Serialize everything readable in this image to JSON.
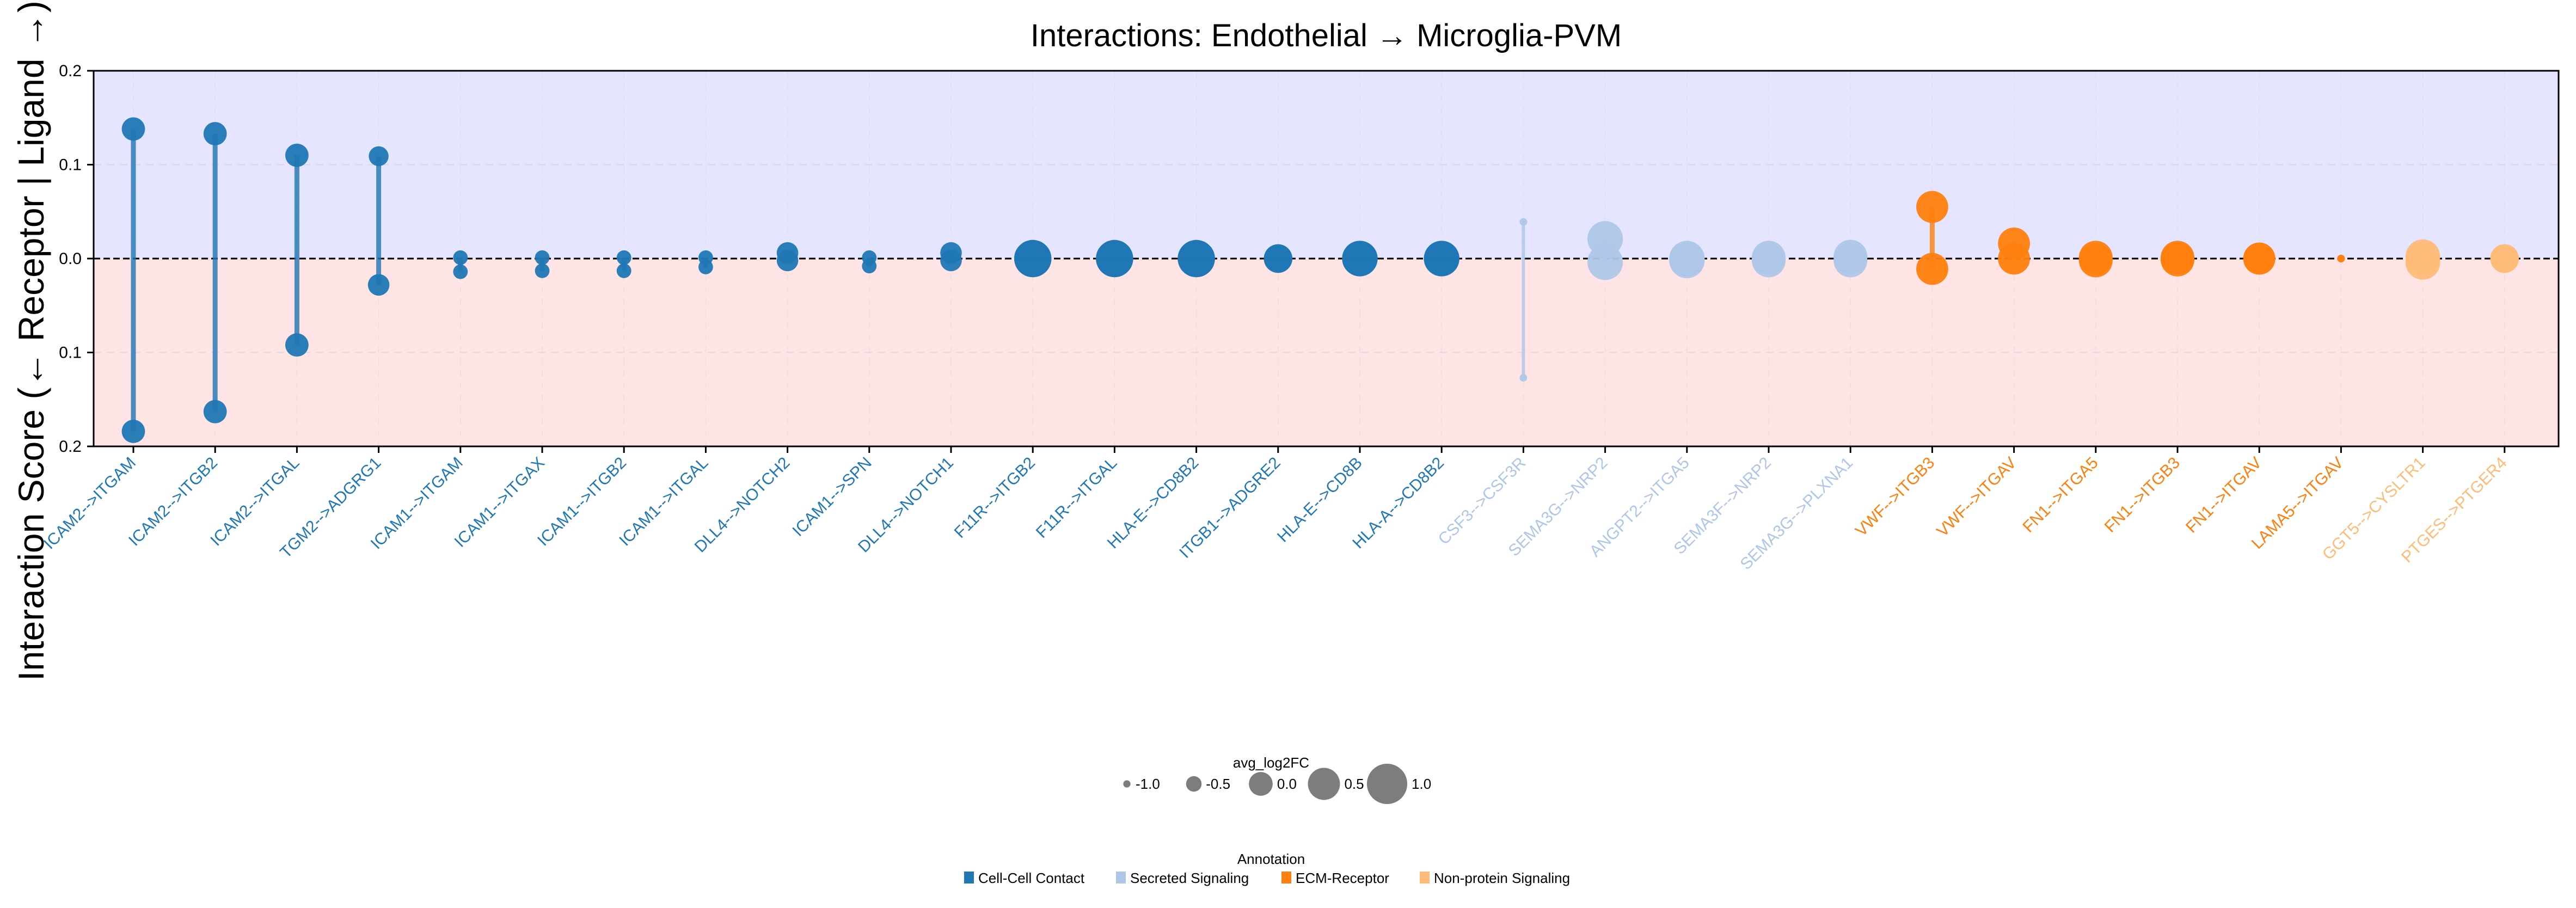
{
  "chart_data": {
    "type": "lollipop",
    "title": "Interactions: Endothelial → Microglia-PVM",
    "ylabel": "Interaction Score (← Receptor | Ligand →)",
    "xlabel": "",
    "ylim": [
      -0.2,
      0.2
    ],
    "yticks": [
      -0.2,
      -0.1,
      0.0,
      0.1,
      0.2
    ],
    "ytick_labels": [
      "0.2",
      "0.1",
      "0.0",
      "0.1",
      "0.2"
    ],
    "grid": true,
    "ligand_region_color": "#e5e5ff",
    "receptor_region_color": "#ffe4e6",
    "annotation_colors": {
      "Cell-Cell Contact": "#1f77b4",
      "Secreted Signaling": "#aec7e8",
      "ECM-Receptor": "#ff7f0e",
      "Non-protein Signaling": "#ffbb78"
    },
    "pairs": [
      {
        "label": "ICAM2-->ITGAM",
        "annotation": "Cell-Cell Contact",
        "ligand_score": 0.138,
        "receptor_score": -0.184,
        "ligand_log2fc": -0.1,
        "receptor_log2fc": -0.1
      },
      {
        "label": "ICAM2-->ITGB2",
        "annotation": "Cell-Cell Contact",
        "ligand_score": 0.133,
        "receptor_score": -0.163,
        "ligand_log2fc": -0.1,
        "receptor_log2fc": -0.1
      },
      {
        "label": "ICAM2-->ITGAL",
        "annotation": "Cell-Cell Contact",
        "ligand_score": 0.11,
        "receptor_score": -0.092,
        "ligand_log2fc": -0.1,
        "receptor_log2fc": -0.1
      },
      {
        "label": "TGM2-->ADGRG1",
        "annotation": "Cell-Cell Contact",
        "ligand_score": 0.109,
        "receptor_score": -0.028,
        "ligand_log2fc": -0.3,
        "receptor_log2fc": -0.2
      },
      {
        "label": "ICAM1-->ITGAM",
        "annotation": "Cell-Cell Contact",
        "ligand_score": 0.001,
        "receptor_score": -0.014,
        "ligand_log2fc": -0.6,
        "receptor_log2fc": -0.6
      },
      {
        "label": "ICAM1-->ITGAX",
        "annotation": "Cell-Cell Contact",
        "ligand_score": 0.001,
        "receptor_score": -0.013,
        "ligand_log2fc": -0.6,
        "receptor_log2fc": -0.6
      },
      {
        "label": "ICAM1-->ITGB2",
        "annotation": "Cell-Cell Contact",
        "ligand_score": 0.001,
        "receptor_score": -0.013,
        "ligand_log2fc": -0.6,
        "receptor_log2fc": -0.6
      },
      {
        "label": "ICAM1-->ITGAL",
        "annotation": "Cell-Cell Contact",
        "ligand_score": 0.001,
        "receptor_score": -0.009,
        "ligand_log2fc": -0.6,
        "receptor_log2fc": -0.6
      },
      {
        "label": "DLL4-->NOTCH2",
        "annotation": "Cell-Cell Contact",
        "ligand_score": 0.006,
        "receptor_score": -0.002,
        "ligand_log2fc": -0.2,
        "receptor_log2fc": -0.2
      },
      {
        "label": "ICAM1-->SPN",
        "annotation": "Cell-Cell Contact",
        "ligand_score": 0.001,
        "receptor_score": -0.008,
        "ligand_log2fc": -0.6,
        "receptor_log2fc": -0.6
      },
      {
        "label": "DLL4-->NOTCH1",
        "annotation": "Cell-Cell Contact",
        "ligand_score": 0.006,
        "receptor_score": -0.002,
        "ligand_log2fc": -0.2,
        "receptor_log2fc": -0.2
      },
      {
        "label": "F11R-->ITGB2",
        "annotation": "Cell-Cell Contact",
        "ligand_score": 0.0,
        "receptor_score": 0.0,
        "ligand_log2fc": 0.7,
        "receptor_log2fc": 0.7
      },
      {
        "label": "F11R-->ITGAL",
        "annotation": "Cell-Cell Contact",
        "ligand_score": 0.0,
        "receptor_score": 0.0,
        "ligand_log2fc": 0.7,
        "receptor_log2fc": 0.7
      },
      {
        "label": "HLA-E-->CD8B2",
        "annotation": "Cell-Cell Contact",
        "ligand_score": 0.0,
        "receptor_score": 0.0,
        "ligand_log2fc": 0.7,
        "receptor_log2fc": 0.7
      },
      {
        "label": "ITGB1-->ADGRE2",
        "annotation": "Cell-Cell Contact",
        "ligand_score": 0.0,
        "receptor_score": 0.0,
        "ligand_log2fc": 0.2,
        "receptor_log2fc": 0.2
      },
      {
        "label": "HLA-E-->CD8B",
        "annotation": "Cell-Cell Contact",
        "ligand_score": 0.0,
        "receptor_score": 0.0,
        "ligand_log2fc": 0.6,
        "receptor_log2fc": 0.6
      },
      {
        "label": "HLA-A-->CD8B2",
        "annotation": "Cell-Cell Contact",
        "ligand_score": 0.0,
        "receptor_score": 0.0,
        "ligand_log2fc": 0.6,
        "receptor_log2fc": 0.6
      },
      {
        "label": "CSF3-->CSF3R",
        "annotation": "Secreted Signaling",
        "ligand_score": 0.039,
        "receptor_score": -0.127,
        "ligand_log2fc": -1.0,
        "receptor_log2fc": -1.0
      },
      {
        "label": "SEMA3G-->NRP2",
        "annotation": "Secreted Signaling",
        "ligand_score": 0.021,
        "receptor_score": -0.004,
        "ligand_log2fc": 0.6,
        "receptor_log2fc": 0.6
      },
      {
        "label": "ANGPT2-->ITGA5",
        "annotation": "Secreted Signaling",
        "ligand_score": 0.0,
        "receptor_score": -0.002,
        "ligand_log2fc": 0.6,
        "receptor_log2fc": 0.6
      },
      {
        "label": "SEMA3F-->NRP2",
        "annotation": "Secreted Signaling",
        "ligand_score": 0.001,
        "receptor_score": -0.002,
        "ligand_log2fc": 0.5,
        "receptor_log2fc": 0.5
      },
      {
        "label": "SEMA3G-->PLXNA1",
        "annotation": "Secreted Signaling",
        "ligand_score": 0.002,
        "receptor_score": -0.002,
        "ligand_log2fc": 0.5,
        "receptor_log2fc": 0.5
      },
      {
        "label": "VWF-->ITGB3",
        "annotation": "ECM-Receptor",
        "ligand_score": 0.055,
        "receptor_score": -0.011,
        "ligand_log2fc": 0.4,
        "receptor_log2fc": 0.4
      },
      {
        "label": "VWF-->ITGAV",
        "annotation": "ECM-Receptor",
        "ligand_score": 0.016,
        "receptor_score": 0.0,
        "ligand_log2fc": 0.4,
        "receptor_log2fc": 0.4
      },
      {
        "label": "FN1-->ITGA5",
        "annotation": "ECM-Receptor",
        "ligand_score": 0.001,
        "receptor_score": -0.002,
        "ligand_log2fc": 0.5,
        "receptor_log2fc": 0.5
      },
      {
        "label": "FN1-->ITGB3",
        "annotation": "ECM-Receptor",
        "ligand_score": 0.001,
        "receptor_score": -0.001,
        "ligand_log2fc": 0.5,
        "receptor_log2fc": 0.5
      },
      {
        "label": "FN1-->ITGAV",
        "annotation": "ECM-Receptor",
        "ligand_score": 0.0,
        "receptor_score": 0.0,
        "ligand_log2fc": 0.4,
        "receptor_log2fc": 0.4
      },
      {
        "label": "LAMA5-->ITGAV",
        "annotation": "ECM-Receptor",
        "ligand_score": 0.0,
        "receptor_score": 0.0,
        "ligand_log2fc": -1.0,
        "receptor_log2fc": -1.0
      },
      {
        "label": "GGT5-->CYSLTR1",
        "annotation": "Non-protein Signaling",
        "ligand_score": 0.002,
        "receptor_score": -0.004,
        "ligand_log2fc": 0.55,
        "receptor_log2fc": 0.55
      },
      {
        "label": "PTGES-->PTGER4",
        "annotation": "Non-protein Signaling",
        "ligand_score": 0.0,
        "receptor_score": 0.0,
        "ligand_log2fc": 0.2,
        "receptor_log2fc": 0.2
      }
    ],
    "size_legend": {
      "title": "avg_log2FC",
      "entries": [
        {
          "value": -1.0,
          "label": "-1.0"
        },
        {
          "value": -0.5,
          "label": "-0.5"
        },
        {
          "value": 0.0,
          "label": "0.0"
        },
        {
          "value": 0.5,
          "label": "0.5"
        },
        {
          "value": 1.0,
          "label": "1.0"
        }
      ]
    },
    "color_legend": {
      "title": "Annotation",
      "entries": [
        "Cell-Cell Contact",
        "Secreted Signaling",
        "ECM-Receptor",
        "Non-protein Signaling"
      ]
    }
  }
}
